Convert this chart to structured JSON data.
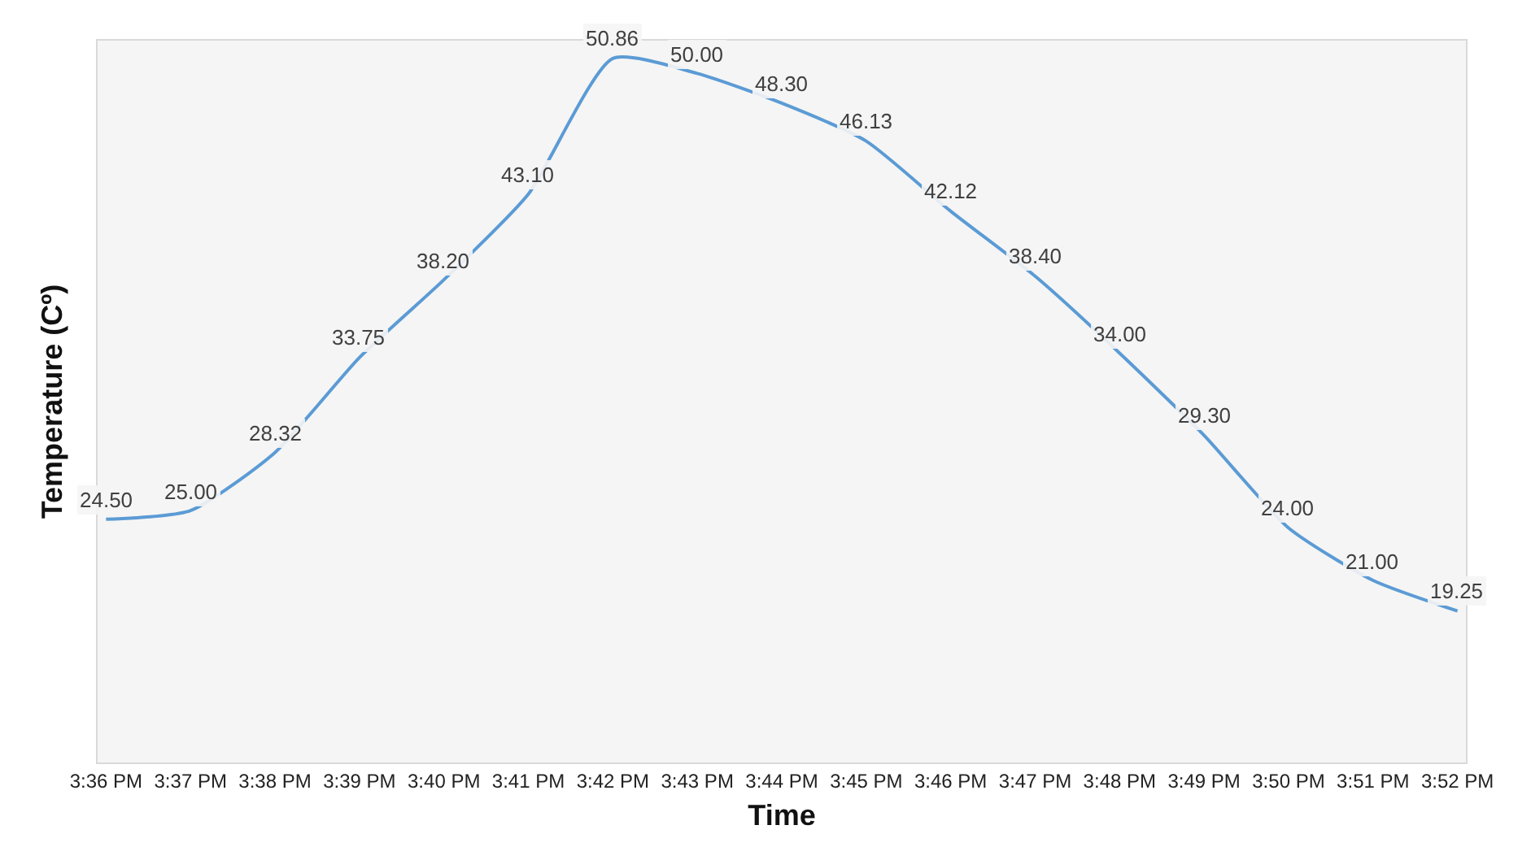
{
  "chart_data": {
    "type": "line",
    "xlabel": "Time",
    "ylabel": "Temperature (Cº)",
    "categories": [
      "3:36 PM",
      "3:37 PM",
      "3:38 PM",
      "3:39 PM",
      "3:40 PM",
      "3:41 PM",
      "3:42 PM",
      "3:43 PM",
      "3:44 PM",
      "3:45 PM",
      "3:46 PM",
      "3:47 PM",
      "3:48 PM",
      "3:49 PM",
      "3:50 PM",
      "3:51 PM",
      "3:52 PM"
    ],
    "series": [
      {
        "color": "#5b9bd5",
        "values": [
          24.5,
          25.0,
          28.32,
          33.75,
          38.2,
          43.1,
          50.86,
          50.0,
          48.3,
          46.13,
          42.12,
          38.4,
          34.0,
          29.3,
          24.0,
          21.0,
          19.25
        ],
        "value_labels": [
          "24.50",
          "25.00",
          "28.32",
          "33.75",
          "38.20",
          "43.10",
          "50.86",
          "50.00",
          "48.30",
          "46.13",
          "42.12",
          "38.40",
          "34.00",
          "29.30",
          "24.00",
          "21.00",
          "19.25"
        ]
      }
    ],
    "tick_labels": "x",
    "marker": "none",
    "line_style": "solid"
  }
}
